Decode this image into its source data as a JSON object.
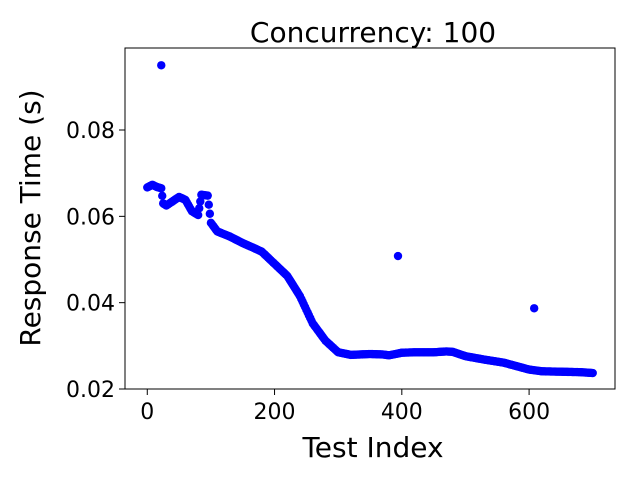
{
  "chart_data": {
    "type": "scatter",
    "title": "Concurrency: 100",
    "xlabel": "Test Index",
    "ylabel": "Response Time (s)",
    "xlim": [
      -35,
      735
    ],
    "ylim": [
      0.02,
      0.099
    ],
    "xticks": [
      0,
      200,
      400,
      600
    ],
    "yticks": [
      0.02,
      0.04,
      0.06,
      0.08
    ],
    "xtick_labels": [
      "0",
      "200",
      "400",
      "600"
    ],
    "ytick_labels": [
      "0.02",
      "0.04",
      "0.06",
      "0.08"
    ],
    "grid": false,
    "marker_color": "#0000ff",
    "outliers": [
      {
        "x": 22,
        "y": 0.095
      },
      {
        "x": 394,
        "y": 0.0508
      },
      {
        "x": 608,
        "y": 0.0387
      }
    ],
    "trend": [
      [
        0,
        0.0667
      ],
      [
        8,
        0.0673
      ],
      [
        15,
        0.0668
      ],
      [
        22,
        0.0665
      ],
      [
        25,
        0.063
      ],
      [
        30,
        0.0625
      ],
      [
        40,
        0.0635
      ],
      [
        50,
        0.0645
      ],
      [
        60,
        0.0638
      ],
      [
        70,
        0.0612
      ],
      [
        80,
        0.0603
      ],
      [
        85,
        0.065
      ],
      [
        95,
        0.0648
      ],
      [
        100,
        0.0585
      ],
      [
        110,
        0.0565
      ],
      [
        130,
        0.0553
      ],
      [
        150,
        0.0538
      ],
      [
        170,
        0.0525
      ],
      [
        180,
        0.0518
      ],
      [
        200,
        0.049
      ],
      [
        220,
        0.0462
      ],
      [
        240,
        0.0415
      ],
      [
        260,
        0.0352
      ],
      [
        280,
        0.0312
      ],
      [
        300,
        0.0285
      ],
      [
        320,
        0.0279
      ],
      [
        350,
        0.0281
      ],
      [
        370,
        0.028
      ],
      [
        380,
        0.0278
      ],
      [
        400,
        0.0284
      ],
      [
        420,
        0.0285
      ],
      [
        450,
        0.0285
      ],
      [
        470,
        0.0287
      ],
      [
        480,
        0.0286
      ],
      [
        500,
        0.0276
      ],
      [
        530,
        0.0268
      ],
      [
        560,
        0.0261
      ],
      [
        580,
        0.0253
      ],
      [
        600,
        0.0245
      ],
      [
        620,
        0.0241
      ],
      [
        650,
        0.024
      ],
      [
        680,
        0.0239
      ],
      [
        700,
        0.0237
      ]
    ]
  }
}
